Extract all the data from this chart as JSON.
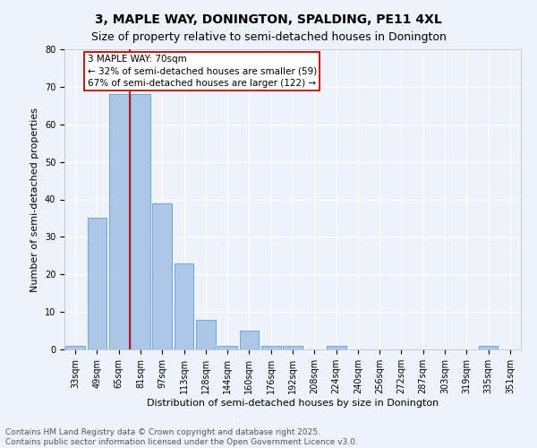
{
  "title": "3, MAPLE WAY, DONINGTON, SPALDING, PE11 4XL",
  "subtitle": "Size of property relative to semi-detached houses in Donington",
  "xlabel": "Distribution of semi-detached houses by size in Donington",
  "ylabel": "Number of semi-detached properties",
  "categories": [
    "33sqm",
    "49sqm",
    "65sqm",
    "81sqm",
    "97sqm",
    "113sqm",
    "128sqm",
    "144sqm",
    "160sqm",
    "176sqm",
    "192sqm",
    "208sqm",
    "224sqm",
    "240sqm",
    "256sqm",
    "272sqm",
    "287sqm",
    "303sqm",
    "319sqm",
    "335sqm",
    "351sqm"
  ],
  "values": [
    1,
    35,
    68,
    68,
    39,
    23,
    8,
    1,
    5,
    1,
    1,
    0,
    1,
    0,
    0,
    0,
    0,
    0,
    0,
    1,
    0
  ],
  "bar_color": "#aec6e8",
  "bar_edge_color": "#5a9fd4",
  "property_label": "3 MAPLE WAY: 70sqm",
  "vline_x_index": 2.5,
  "annotation_text_1": "← 32% of semi-detached houses are smaller (59)",
  "annotation_text_2": "67% of semi-detached houses are larger (122) →",
  "vline_color": "#cc0000",
  "box_color": "#cc0000",
  "ylim": [
    0,
    80
  ],
  "yticks": [
    0,
    10,
    20,
    30,
    40,
    50,
    60,
    70,
    80
  ],
  "footer_text": "Contains HM Land Registry data © Crown copyright and database right 2025.\nContains public sector information licensed under the Open Government Licence v3.0.",
  "background_color": "#eef2fb",
  "title_fontsize": 10,
  "subtitle_fontsize": 9,
  "axis_label_fontsize": 8,
  "tick_fontsize": 7,
  "annotation_fontsize": 7.5,
  "footer_fontsize": 6.5
}
